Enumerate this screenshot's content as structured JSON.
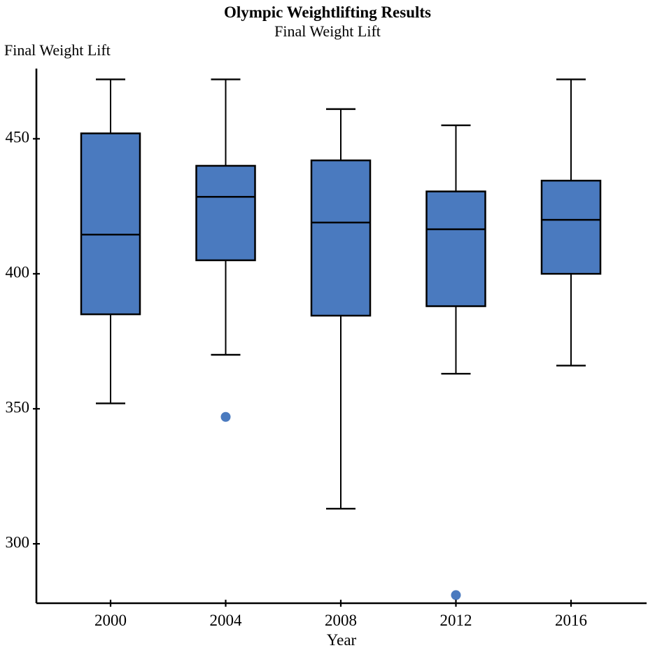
{
  "title": "Olympic Weightlifting Results",
  "subtitle": "Final Weight Lift",
  "colors": {
    "box_fill": "#4a7abf",
    "box_stroke": "#000000",
    "median_line": "#000000",
    "whisker": "#000000",
    "axis": "#000000",
    "outlier_fill": "#4a7abf",
    "text": "#000000",
    "background": "#ffffff"
  },
  "chart_data": {
    "type": "boxplot",
    "title": "Olympic Weightlifting Results",
    "subtitle": "Final Weight Lift",
    "xlabel": "Year",
    "ylabel": "Final Weight Lift",
    "categories": [
      "2000",
      "2004",
      "2008",
      "2012",
      "2016"
    ],
    "yticks": [
      300,
      350,
      400,
      450
    ],
    "ylim": [
      278,
      476
    ],
    "grid": false,
    "legend": "none",
    "series": [
      {
        "category": "2000",
        "min": 352,
        "q1": 385,
        "median": 414.5,
        "q3": 452,
        "max": 472,
        "outliers": []
      },
      {
        "category": "2004",
        "min": 370,
        "q1": 405,
        "median": 428.5,
        "q3": 440,
        "max": 472,
        "outliers": [
          347
        ]
      },
      {
        "category": "2008",
        "min": 313,
        "q1": 384.5,
        "median": 419,
        "q3": 442,
        "max": 461,
        "outliers": []
      },
      {
        "category": "2012",
        "min": 363,
        "q1": 388,
        "median": 416.5,
        "q3": 430.5,
        "max": 455,
        "outliers": [
          281
        ]
      },
      {
        "category": "2016",
        "min": 366,
        "q1": 400,
        "median": 420,
        "q3": 434.5,
        "max": 472,
        "outliers": []
      }
    ]
  }
}
